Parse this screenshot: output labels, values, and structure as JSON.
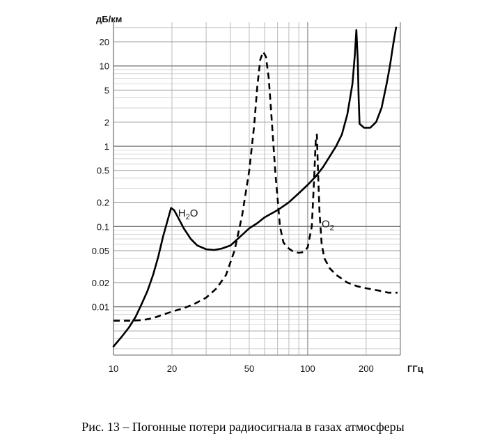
{
  "caption": "Рис. 13 – Погонные потери радиосигнала в газах атмосферы",
  "chart_data": {
    "type": "line",
    "title": "",
    "xlabel": "ГГц",
    "ylabel": "дБ/км",
    "xscale": "log",
    "yscale": "log",
    "xlim": [
      10,
      300
    ],
    "ylim": [
      0.0025,
      35
    ],
    "grid": true,
    "x_ticks": [
      {
        "v": 10,
        "label": "10"
      },
      {
        "v": 20,
        "label": "20"
      },
      {
        "v": 50,
        "label": "50"
      },
      {
        "v": 100,
        "label": "100"
      },
      {
        "v": 200,
        "label": "200"
      }
    ],
    "y_ticks": [
      {
        "v": 0.01,
        "label": "0.01"
      },
      {
        "v": 0.02,
        "label": "0.02"
      },
      {
        "v": 0.05,
        "label": "0.05"
      },
      {
        "v": 0.1,
        "label": "0.1"
      },
      {
        "v": 0.2,
        "label": "0.2"
      },
      {
        "v": 0.5,
        "label": "0.5"
      },
      {
        "v": 1,
        "label": "1"
      },
      {
        "v": 2,
        "label": "2"
      },
      {
        "v": 5,
        "label": "5"
      },
      {
        "v": 10,
        "label": "10"
      },
      {
        "v": 20,
        "label": "20"
      }
    ],
    "series": [
      {
        "name": "H2O",
        "style": "solid",
        "label": {
          "text": "H",
          "sub": "2",
          "tail": "O",
          "x": 21.5,
          "y": 0.15
        },
        "points": [
          [
            10,
            0.0032
          ],
          [
            11,
            0.0042
          ],
          [
            12,
            0.0055
          ],
          [
            13,
            0.0075
          ],
          [
            14,
            0.011
          ],
          [
            15,
            0.016
          ],
          [
            16,
            0.025
          ],
          [
            17,
            0.042
          ],
          [
            18,
            0.075
          ],
          [
            19,
            0.12
          ],
          [
            19.8,
            0.17
          ],
          [
            20.5,
            0.16
          ],
          [
            21.5,
            0.13
          ],
          [
            23,
            0.095
          ],
          [
            25,
            0.07
          ],
          [
            27,
            0.058
          ],
          [
            30,
            0.052
          ],
          [
            33,
            0.051
          ],
          [
            36,
            0.053
          ],
          [
            40,
            0.058
          ],
          [
            45,
            0.075
          ],
          [
            50,
            0.095
          ],
          [
            55,
            0.11
          ],
          [
            60,
            0.13
          ],
          [
            70,
            0.16
          ],
          [
            80,
            0.2
          ],
          [
            90,
            0.26
          ],
          [
            100,
            0.33
          ],
          [
            110,
            0.42
          ],
          [
            120,
            0.55
          ],
          [
            130,
            0.75
          ],
          [
            140,
            1.0
          ],
          [
            150,
            1.4
          ],
          [
            160,
            2.5
          ],
          [
            170,
            6
          ],
          [
            175,
            14
          ],
          [
            178,
            28
          ],
          [
            181,
            12
          ],
          [
            183,
            4
          ],
          [
            185,
            1.9
          ],
          [
            195,
            1.7
          ],
          [
            210,
            1.7
          ],
          [
            225,
            2.0
          ],
          [
            240,
            3
          ],
          [
            255,
            6
          ],
          [
            265,
            10
          ],
          [
            275,
            18
          ],
          [
            285,
            30
          ]
        ]
      },
      {
        "name": "O2",
        "style": "dashed",
        "label": {
          "text": "O",
          "sub": "2",
          "tail": "",
          "x": 118,
          "y": 0.11
        },
        "points": [
          [
            10,
            0.0067
          ],
          [
            12,
            0.0067
          ],
          [
            14,
            0.0068
          ],
          [
            16,
            0.0072
          ],
          [
            18,
            0.008
          ],
          [
            20,
            0.0087
          ],
          [
            23,
            0.0096
          ],
          [
            26,
            0.0108
          ],
          [
            30,
            0.013
          ],
          [
            34,
            0.017
          ],
          [
            38,
            0.025
          ],
          [
            42,
            0.05
          ],
          [
            46,
            0.14
          ],
          [
            50,
            0.5
          ],
          [
            53,
            1.8
          ],
          [
            55,
            5.5
          ],
          [
            57,
            12
          ],
          [
            59,
            15
          ],
          [
            61,
            13
          ],
          [
            63,
            7
          ],
          [
            65,
            2.5
          ],
          [
            68,
            0.5
          ],
          [
            72,
            0.1
          ],
          [
            75,
            0.063
          ],
          [
            80,
            0.053
          ],
          [
            85,
            0.048
          ],
          [
            90,
            0.047
          ],
          [
            95,
            0.048
          ],
          [
            100,
            0.055
          ],
          [
            105,
            0.1
          ],
          [
            108,
            0.4
          ],
          [
            110,
            1.2
          ],
          [
            111.5,
            1.4
          ],
          [
            113,
            0.5
          ],
          [
            115,
            0.15
          ],
          [
            118,
            0.06
          ],
          [
            122,
            0.04
          ],
          [
            130,
            0.03
          ],
          [
            140,
            0.025
          ],
          [
            160,
            0.02
          ],
          [
            180,
            0.018
          ],
          [
            200,
            0.017
          ],
          [
            230,
            0.016
          ],
          [
            260,
            0.015
          ],
          [
            290,
            0.015
          ]
        ]
      }
    ]
  }
}
